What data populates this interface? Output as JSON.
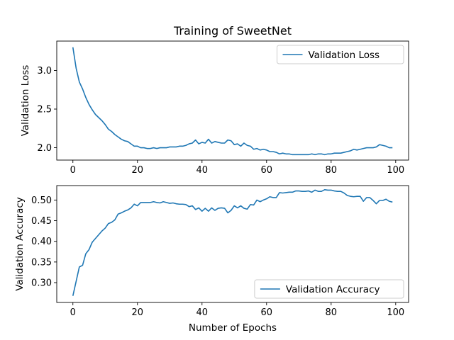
{
  "chart_data": [
    {
      "type": "line",
      "title": "Training of SweetNet",
      "xlabel": "",
      "ylabel": "Validation Loss",
      "xlim": [
        -5,
        104
      ],
      "ylim": [
        1.84,
        3.38
      ],
      "xticks": [
        0,
        20,
        40,
        60,
        80,
        100
      ],
      "yticks": [
        2.0,
        2.5,
        3.0
      ],
      "ytick_labels": [
        "2.0",
        "2.5",
        "3.0"
      ],
      "legend_position": "top-right",
      "color": "#1f77b4",
      "series": [
        {
          "name": "Validation Loss",
          "x": [
            0,
            1,
            2,
            3,
            4,
            5,
            6,
            7,
            8,
            9,
            10,
            11,
            12,
            13,
            14,
            15,
            16,
            17,
            18,
            19,
            20,
            21,
            22,
            23,
            24,
            25,
            26,
            27,
            28,
            29,
            30,
            31,
            32,
            33,
            34,
            35,
            36,
            37,
            38,
            39,
            40,
            41,
            42,
            43,
            44,
            45,
            46,
            47,
            48,
            49,
            50,
            51,
            52,
            53,
            54,
            55,
            56,
            57,
            58,
            59,
            60,
            61,
            62,
            63,
            64,
            65,
            66,
            67,
            68,
            69,
            70,
            71,
            72,
            73,
            74,
            75,
            76,
            77,
            78,
            79,
            80,
            81,
            82,
            83,
            84,
            85,
            86,
            87,
            88,
            89,
            90,
            91,
            92,
            93,
            94,
            95,
            96,
            97,
            98,
            99
          ],
          "values": [
            3.3,
            3.03,
            2.85,
            2.76,
            2.65,
            2.56,
            2.49,
            2.43,
            2.39,
            2.35,
            2.3,
            2.24,
            2.21,
            2.17,
            2.14,
            2.11,
            2.09,
            2.08,
            2.05,
            2.02,
            2.02,
            2.0,
            2.0,
            1.99,
            1.99,
            2.0,
            1.99,
            2.0,
            2.0,
            2.0,
            2.01,
            2.01,
            2.01,
            2.02,
            2.02,
            2.03,
            2.05,
            2.06,
            2.1,
            2.05,
            2.07,
            2.06,
            2.11,
            2.06,
            2.08,
            2.07,
            2.06,
            2.06,
            2.1,
            2.09,
            2.04,
            2.05,
            2.02,
            2.06,
            2.03,
            2.02,
            1.98,
            1.99,
            1.97,
            1.98,
            1.97,
            1.95,
            1.95,
            1.94,
            1.92,
            1.93,
            1.92,
            1.92,
            1.91,
            1.91,
            1.91,
            1.91,
            1.91,
            1.91,
            1.92,
            1.91,
            1.92,
            1.92,
            1.91,
            1.92,
            1.92,
            1.93,
            1.93,
            1.93,
            1.94,
            1.95,
            1.96,
            1.98,
            1.97,
            1.98,
            1.99,
            2.0,
            2.0,
            2.0,
            2.01,
            2.04,
            2.03,
            2.02,
            2.0,
            2.0
          ]
        }
      ]
    },
    {
      "type": "line",
      "title": "",
      "xlabel": "Number of Epochs",
      "ylabel": "Validation Accuracy",
      "xlim": [
        -5,
        104
      ],
      "ylim": [
        0.252,
        0.535
      ],
      "xticks": [
        0,
        20,
        40,
        60,
        80,
        100
      ],
      "yticks": [
        0.3,
        0.35,
        0.4,
        0.45,
        0.5
      ],
      "ytick_labels": [
        "0.30",
        "0.35",
        "0.40",
        "0.45",
        "0.50"
      ],
      "legend_position": "bottom-right",
      "color": "#1f77b4",
      "series": [
        {
          "name": "Validation Accuracy",
          "x": [
            0,
            1,
            2,
            3,
            4,
            5,
            6,
            7,
            8,
            9,
            10,
            11,
            12,
            13,
            14,
            15,
            16,
            17,
            18,
            19,
            20,
            21,
            22,
            23,
            24,
            25,
            26,
            27,
            28,
            29,
            30,
            31,
            32,
            33,
            34,
            35,
            36,
            37,
            38,
            39,
            40,
            41,
            42,
            43,
            44,
            45,
            46,
            47,
            48,
            49,
            50,
            51,
            52,
            53,
            54,
            55,
            56,
            57,
            58,
            59,
            60,
            61,
            62,
            63,
            64,
            65,
            66,
            67,
            68,
            69,
            70,
            71,
            72,
            73,
            74,
            75,
            76,
            77,
            78,
            79,
            80,
            81,
            82,
            83,
            84,
            85,
            86,
            87,
            88,
            89,
            90,
            91,
            92,
            93,
            94,
            95,
            96,
            97,
            98,
            99
          ],
          "values": [
            0.268,
            0.303,
            0.338,
            0.342,
            0.37,
            0.38,
            0.398,
            0.407,
            0.416,
            0.425,
            0.432,
            0.443,
            0.446,
            0.452,
            0.466,
            0.469,
            0.473,
            0.476,
            0.481,
            0.49,
            0.486,
            0.494,
            0.494,
            0.494,
            0.494,
            0.496,
            0.494,
            0.493,
            0.496,
            0.494,
            0.492,
            0.493,
            0.491,
            0.49,
            0.49,
            0.489,
            0.484,
            0.486,
            0.477,
            0.481,
            0.473,
            0.48,
            0.473,
            0.481,
            0.475,
            0.48,
            0.481,
            0.48,
            0.469,
            0.475,
            0.486,
            0.481,
            0.486,
            0.48,
            0.478,
            0.489,
            0.488,
            0.5,
            0.496,
            0.5,
            0.503,
            0.508,
            0.506,
            0.506,
            0.518,
            0.517,
            0.518,
            0.519,
            0.519,
            0.522,
            0.522,
            0.521,
            0.521,
            0.522,
            0.519,
            0.524,
            0.521,
            0.521,
            0.525,
            0.524,
            0.524,
            0.522,
            0.521,
            0.521,
            0.517,
            0.511,
            0.509,
            0.508,
            0.509,
            0.509,
            0.497,
            0.506,
            0.506,
            0.499,
            0.491,
            0.499,
            0.499,
            0.502,
            0.497,
            0.495
          ]
        }
      ]
    }
  ]
}
